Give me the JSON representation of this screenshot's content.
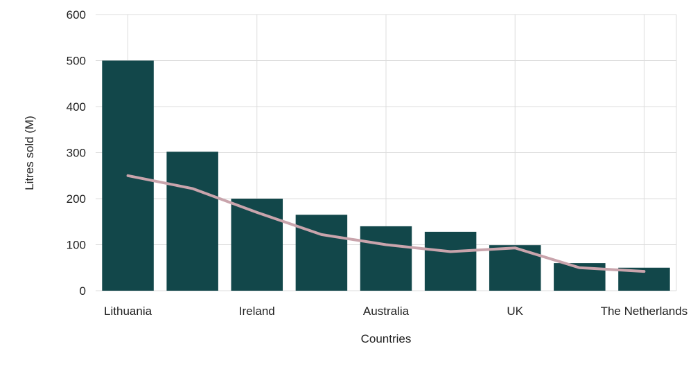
{
  "chart_data": {
    "type": "bar",
    "categories": [
      "Lithuania",
      "",
      "Ireland",
      "",
      "Australia",
      "",
      "UK",
      "",
      "The Netherlands"
    ],
    "series": [
      {
        "type": "bar",
        "values": [
          500,
          302,
          200,
          165,
          140,
          128,
          99,
          60,
          50
        ]
      },
      {
        "type": "line",
        "values": [
          250,
          222,
          170,
          122,
          100,
          85,
          93,
          50,
          42
        ]
      }
    ],
    "xlabel": "Countries",
    "ylabel": "Litres sold (M)",
    "ylim": [
      0,
      600
    ],
    "yticks": [
      0,
      100,
      200,
      300,
      400,
      500,
      600
    ],
    "grid": true,
    "colors": {
      "bar": "#12474a",
      "line": "#c9a4ac",
      "grid": "#dcdcdc",
      "text": "#222222"
    }
  }
}
